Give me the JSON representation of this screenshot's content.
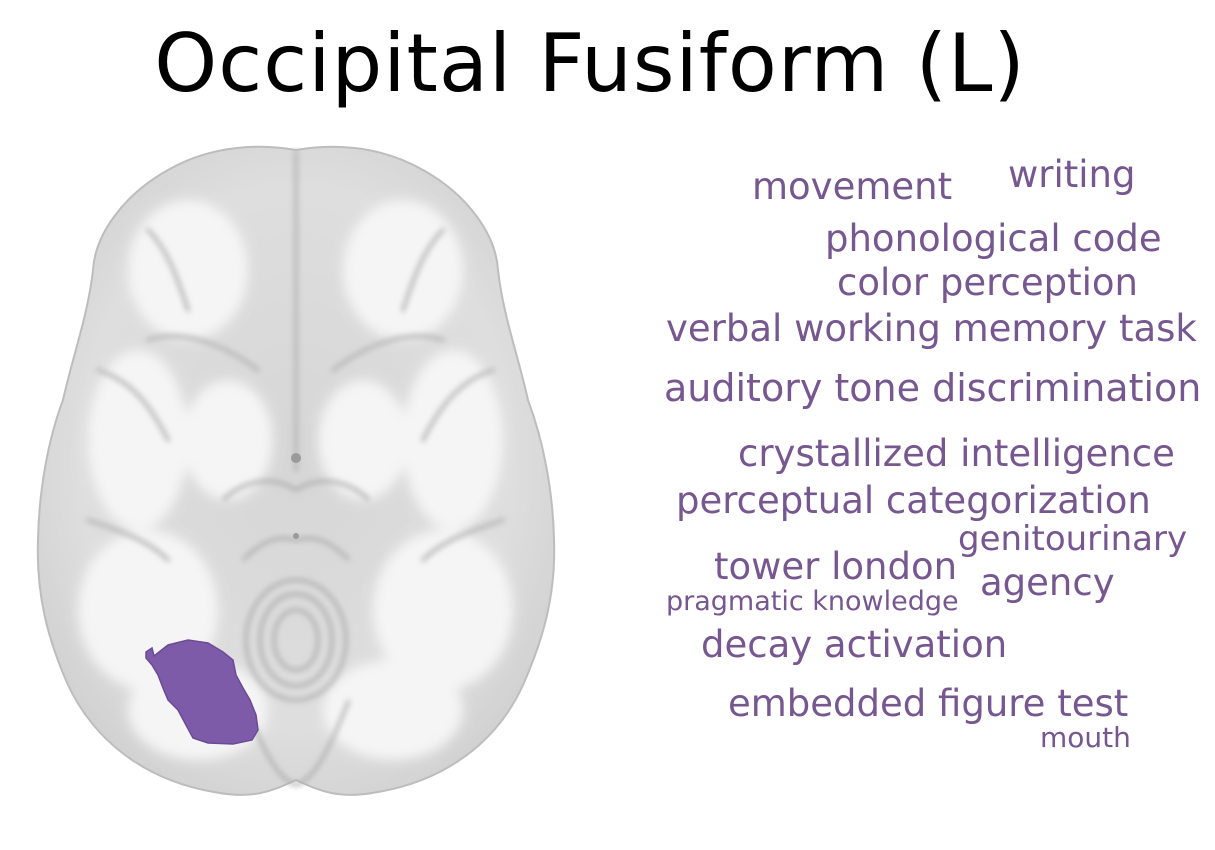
{
  "title": "Occipital Fusiform (L)",
  "colors": {
    "region": "#7e5ba8",
    "term_text": "#76578f",
    "title_text": "#000000"
  },
  "terms": {
    "movement": "movement",
    "writing": "writing",
    "phonological_code": "phonological code",
    "color_perception": "color perception",
    "verbal_working_memory_task": "verbal working memory task",
    "auditory_tone_discrimination": "auditory tone discrimination",
    "crystallized_intelligence": "crystallized intelligence",
    "perceptual_categorization": "perceptual categorization",
    "genitourinary": "genitourinary",
    "tower_london": "tower london",
    "agency": "agency",
    "pragmatic_knowledge": "pragmatic knowledge",
    "decay_activation": "decay activation",
    "embedded_figure_test": "embedded figure test",
    "mouth": "mouth"
  }
}
